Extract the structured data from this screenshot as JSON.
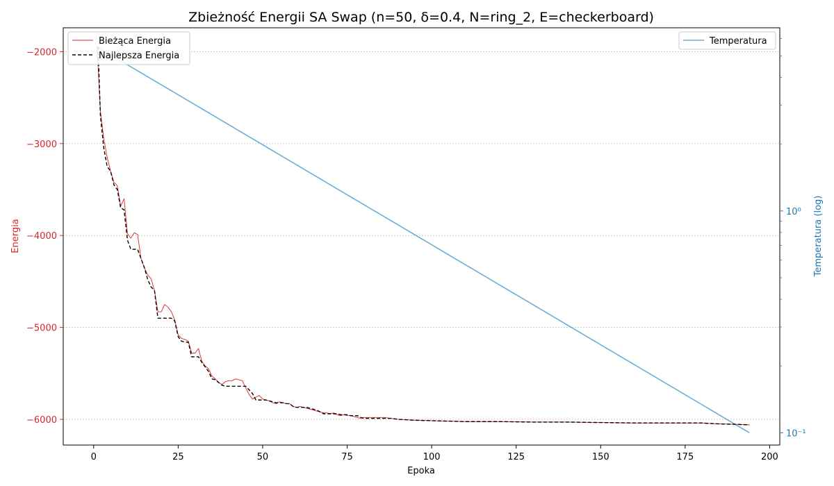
{
  "chart_data": {
    "type": "line",
    "title": "Zbieżność Energii SA Swap (n=50, δ=0.4, N=ring_2, E=checkerboard)",
    "xlabel": "Epoka",
    "ylabel_left": "Energia",
    "ylabel_right": "Temperatura (log)",
    "xlim": [
      -9,
      203
    ],
    "ylim_left": [
      -6280,
      -1740
    ],
    "ylim_right": [
      0.088,
      6.7
    ],
    "yscale_right": "log",
    "x_ticks": [
      "0",
      "25",
      "50",
      "75",
      "100",
      "125",
      "150",
      "175",
      "200"
    ],
    "y_ticks_left": [
      "−2000",
      "−3000",
      "−4000",
      "−5000",
      "−6000"
    ],
    "y_ticks_right": [
      "10⁰",
      "10⁻¹"
    ],
    "grid": "horizontal dotted",
    "legend_left": {
      "position": "top-left",
      "entries": [
        "Bieżąca Energia",
        "Najlepsza Energia"
      ]
    },
    "legend_right": {
      "position": "top-right",
      "entries": [
        "Temperatura"
      ]
    },
    "colors": {
      "current": "#d62728",
      "best": "#000000",
      "temperature": "#6baed6",
      "left_axis": "#d62728",
      "right_axis": "#1f77b4",
      "grid": "#b0b0b0"
    },
    "series": [
      {
        "name": "Bieżąca Energia",
        "axis": "left",
        "x": [
          1,
          2,
          3,
          4,
          5,
          6,
          7,
          8,
          9,
          10,
          11,
          12,
          13,
          14,
          15,
          16,
          17,
          18,
          19,
          20,
          21,
          22,
          23,
          24,
          25,
          26,
          27,
          28,
          29,
          30,
          31,
          32,
          33,
          34,
          35,
          36,
          37,
          38,
          39,
          40,
          41,
          42,
          43,
          44,
          45,
          46,
          47,
          48,
          49,
          50,
          51,
          52,
          53,
          54,
          55,
          56,
          57,
          58,
          59,
          60,
          61,
          62,
          63,
          64,
          65,
          66,
          67,
          68,
          69,
          70,
          71,
          72,
          73,
          74,
          75,
          76,
          77,
          78,
          79,
          80,
          82,
          84,
          86,
          88,
          90,
          95,
          100,
          105,
          110,
          120,
          130,
          140,
          150,
          160,
          170,
          180,
          182,
          185,
          190,
          194
        ],
        "values": [
          -1950,
          -2650,
          -2950,
          -3150,
          -3300,
          -3420,
          -3460,
          -3680,
          -3600,
          -3980,
          -4030,
          -3970,
          -3990,
          -4250,
          -4350,
          -4430,
          -4470,
          -4600,
          -4830,
          -4830,
          -4750,
          -4780,
          -4830,
          -4920,
          -5080,
          -5120,
          -5130,
          -5150,
          -5280,
          -5280,
          -5230,
          -5370,
          -5420,
          -5450,
          -5530,
          -5560,
          -5600,
          -5620,
          -5590,
          -5580,
          -5580,
          -5560,
          -5570,
          -5580,
          -5660,
          -5730,
          -5780,
          -5760,
          -5740,
          -5780,
          -5790,
          -5800,
          -5820,
          -5830,
          -5810,
          -5820,
          -5830,
          -5830,
          -5860,
          -5870,
          -5860,
          -5870,
          -5880,
          -5890,
          -5900,
          -5910,
          -5920,
          -5930,
          -5930,
          -5940,
          -5930,
          -5950,
          -5960,
          -5950,
          -5960,
          -5960,
          -5970,
          -5980,
          -5990,
          -5980,
          -5980,
          -5980,
          -5980,
          -5990,
          -6000,
          -6010,
          -6015,
          -6020,
          -6025,
          -6025,
          -6030,
          -6030,
          -6035,
          -6040,
          -6040,
          -6040,
          -6045,
          -6050,
          -6055,
          -6060
        ]
      },
      {
        "name": "Najlepsza Energia",
        "axis": "left",
        "x": [
          1,
          1.3,
          2,
          3,
          4,
          5,
          6,
          7,
          8,
          9,
          10,
          11,
          12,
          13,
          14,
          15,
          16,
          17,
          18,
          19,
          20,
          21,
          22,
          23,
          24,
          25,
          26,
          27,
          28,
          29,
          30,
          31,
          32,
          33,
          34,
          35,
          36,
          37,
          38,
          39,
          40,
          41,
          42,
          43,
          44,
          45,
          46,
          47,
          48,
          49,
          50,
          51,
          52,
          53,
          54,
          55,
          56,
          57,
          58,
          59,
          60,
          61,
          62,
          63,
          64,
          65,
          66,
          67,
          68,
          69,
          70,
          71,
          72,
          73,
          74,
          75,
          76,
          77,
          78,
          79,
          80,
          82,
          84,
          86,
          88,
          90,
          95,
          100,
          105,
          110,
          120,
          130,
          140,
          150,
          160,
          170,
          180,
          182,
          185,
          190,
          194
        ],
        "values": [
          -1950,
          -1950,
          -2700,
          -3050,
          -3250,
          -3300,
          -3450,
          -3500,
          -3700,
          -3720,
          -4050,
          -4150,
          -4150,
          -4150,
          -4250,
          -4350,
          -4480,
          -4560,
          -4600,
          -4900,
          -4900,
          -4900,
          -4900,
          -4900,
          -4930,
          -5100,
          -5150,
          -5160,
          -5160,
          -5320,
          -5320,
          -5320,
          -5380,
          -5430,
          -5480,
          -5560,
          -5570,
          -5600,
          -5630,
          -5640,
          -5640,
          -5640,
          -5640,
          -5640,
          -5640,
          -5640,
          -5680,
          -5720,
          -5790,
          -5790,
          -5790,
          -5790,
          -5800,
          -5810,
          -5820,
          -5820,
          -5820,
          -5830,
          -5830,
          -5860,
          -5870,
          -5870,
          -5870,
          -5870,
          -5880,
          -5890,
          -5900,
          -5920,
          -5940,
          -5940,
          -5940,
          -5940,
          -5940,
          -5950,
          -5950,
          -5950,
          -5960,
          -5960,
          -5960,
          -5980,
          -5990,
          -5990,
          -5990,
          -5990,
          -5990,
          -6000,
          -6010,
          -6015,
          -6020,
          -6025,
          -6025,
          -6030,
          -6030,
          -6035,
          -6040,
          -6040,
          -6040,
          -6045,
          -6050,
          -6055,
          -6060
        ]
      },
      {
        "name": "Temperatura",
        "axis": "right",
        "x": [
          1,
          194
        ],
        "values": [
          5.5,
          0.1
        ]
      }
    ]
  }
}
